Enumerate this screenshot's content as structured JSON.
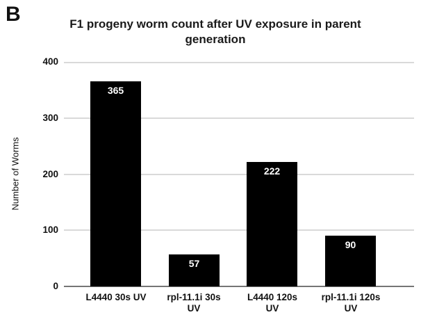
{
  "figure": {
    "panel_label": "B",
    "title_lines": [
      "F1 progeny worm count after UV exposure in parent",
      "generation"
    ]
  },
  "chart_data": {
    "type": "bar",
    "title": "F1 progeny worm count after UV exposure in parent generation",
    "categories": [
      "L4440 30s UV",
      "rpl-11.1i 30s UV",
      "L4440 120s UV",
      "rpl-11.1i 120s UV"
    ],
    "values": [
      365,
      57,
      222,
      90
    ],
    "value_labels": [
      "365",
      "57",
      "222",
      "90"
    ],
    "xtick_display_lines": [
      [
        "L4440 30s UV"
      ],
      [
        "rpl-11.1i 30s",
        "UV"
      ],
      [
        "L4440 120s",
        "UV"
      ],
      [
        "rpl-11.1i 120s",
        "UV"
      ]
    ],
    "xlabel": "",
    "ylabel": "Number of Worms",
    "ylim": [
      0,
      400
    ],
    "yticks": [
      0,
      100,
      200,
      300,
      400
    ],
    "grid": true,
    "legend_position": "none",
    "bar_color": "#000000",
    "value_label_color": "#ffffff",
    "gridline_color": "#d9d9d9",
    "axis_line_color": "#757575"
  }
}
